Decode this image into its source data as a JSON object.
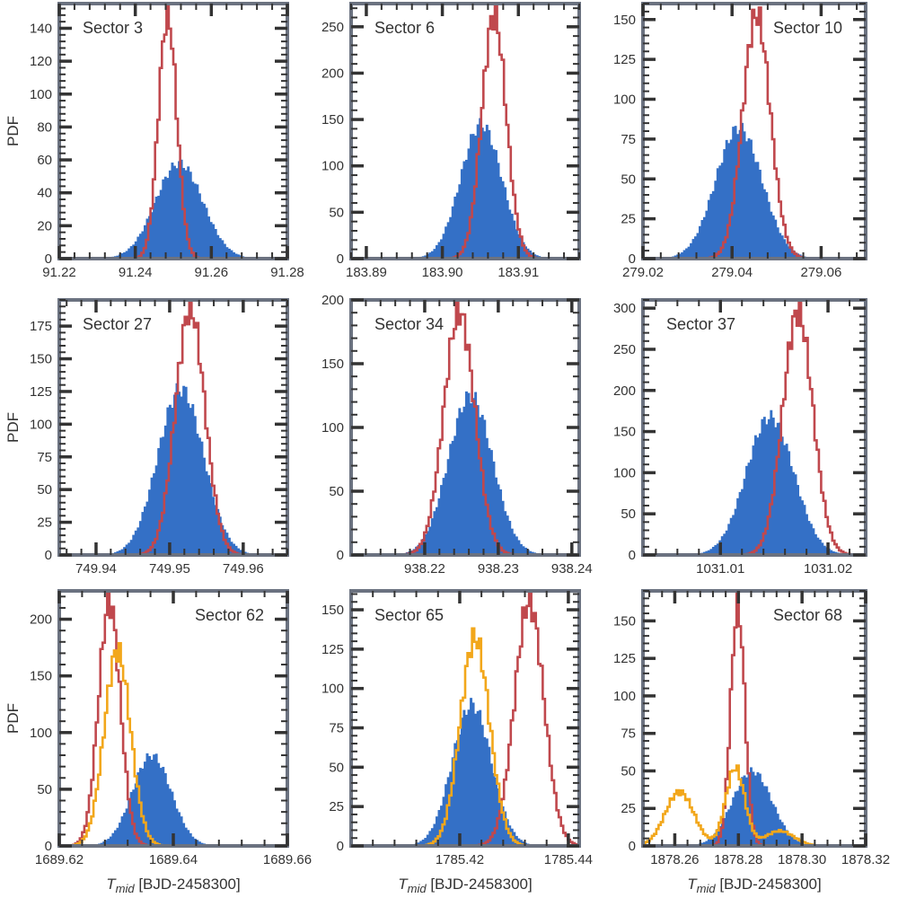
{
  "figure": {
    "xlabel_symbol": "T",
    "xlabel_subscript": "mid",
    "xlabel_unit": " [BJD-2458300]",
    "ylabel": "PDF"
  },
  "colors": {
    "filled": "#3470c6",
    "red": "#c0484d",
    "orange": "#f2a71b",
    "frame": "#6b7280",
    "tick": "#333333"
  },
  "chart_data": [
    {
      "type": "histogram",
      "title": "Sector 3",
      "label_pos": "top-left",
      "xlim": [
        91.22,
        91.28
      ],
      "ylim": [
        0,
        155
      ],
      "xticks": [
        91.22,
        91.24,
        91.26,
        91.28
      ],
      "xtick_labels": [
        "91.22",
        "91.24",
        "91.26",
        "91.28"
      ],
      "yticks": [
        0,
        20,
        40,
        60,
        80,
        100,
        120,
        140
      ],
      "ylabel": "PDF",
      "xlabel": "",
      "series": [
        {
          "name": "filled",
          "style": "filled",
          "center": 91.2515,
          "sigma": 0.0062,
          "peak": 58
        },
        {
          "name": "red",
          "style": "step",
          "center": 91.2485,
          "sigma": 0.0024,
          "peak": 148
        }
      ]
    },
    {
      "type": "histogram",
      "title": "Sector 6",
      "label_pos": "top-left",
      "xlim": [
        183.888,
        183.918
      ],
      "ylim": [
        0,
        275
      ],
      "xticks": [
        183.89,
        183.9,
        183.91
      ],
      "xtick_labels": [
        "183.89",
        "183.90",
        "183.91"
      ],
      "yticks": [
        0,
        50,
        100,
        150,
        200,
        250
      ],
      "ylabel": "",
      "xlabel": "",
      "series": [
        {
          "name": "filled",
          "style": "filled",
          "center": 183.9051,
          "sigma": 0.0027,
          "peak": 145
        },
        {
          "name": "red",
          "style": "step",
          "center": 183.9068,
          "sigma": 0.0016,
          "peak": 262
        }
      ]
    },
    {
      "type": "histogram",
      "title": "Sector 10",
      "label_pos": "top-right",
      "xlim": [
        279.02,
        279.07
      ],
      "ylim": [
        0,
        160
      ],
      "xticks": [
        279.02,
        279.04,
        279.06
      ],
      "xtick_labels": [
        "279.02",
        "279.04",
        "279.06"
      ],
      "yticks": [
        0,
        25,
        50,
        75,
        100,
        125,
        150
      ],
      "ylabel": "",
      "xlabel": "",
      "series": [
        {
          "name": "filled",
          "style": "filled",
          "center": 279.0415,
          "sigma": 0.0052,
          "peak": 82
        },
        {
          "name": "red",
          "style": "step",
          "center": 279.0455,
          "sigma": 0.0031,
          "peak": 153
        }
      ]
    },
    {
      "type": "histogram",
      "title": "Sector 27",
      "label_pos": "top-left",
      "xlim": [
        749.935,
        749.966
      ],
      "ylim": [
        0,
        195
      ],
      "xticks": [
        749.94,
        749.95,
        749.96
      ],
      "xtick_labels": [
        "749.94",
        "749.95",
        "749.96"
      ],
      "yticks": [
        0,
        25,
        50,
        75,
        100,
        125,
        150,
        175
      ],
      "ylabel": "PDF",
      "xlabel": "",
      "series": [
        {
          "name": "filled",
          "style": "filled",
          "center": 749.9515,
          "sigma": 0.0031,
          "peak": 127
        },
        {
          "name": "red",
          "style": "step",
          "center": 749.9528,
          "sigma": 0.002,
          "peak": 188
        }
      ]
    },
    {
      "type": "histogram",
      "title": "Sector 34",
      "label_pos": "top-left",
      "xlim": [
        938.21,
        938.241
      ],
      "ylim": [
        0,
        200
      ],
      "xticks": [
        938.22,
        938.23,
        938.24
      ],
      "xtick_labels": [
        "938.22",
        "938.23",
        "938.24"
      ],
      "yticks": [
        0,
        50,
        100,
        150,
        200
      ],
      "ylabel": "",
      "xlabel": "",
      "series": [
        {
          "name": "filled",
          "style": "filled",
          "center": 938.2262,
          "sigma": 0.003,
          "peak": 125
        },
        {
          "name": "red",
          "style": "step",
          "center": 938.2247,
          "sigma": 0.0021,
          "peak": 190
        }
      ]
    },
    {
      "type": "histogram",
      "title": "Sector 37",
      "label_pos": "top-left",
      "xlim": [
        1031.0028,
        1031.0235
      ],
      "ylim": [
        0,
        310
      ],
      "xticks": [
        1031.01,
        1031.02
      ],
      "xtick_labels": [
        "1031.01",
        "1031.02"
      ],
      "yticks": [
        0,
        50,
        100,
        150,
        200,
        250,
        300
      ],
      "ylabel": "",
      "xlabel": "",
      "series": [
        {
          "name": "filled",
          "style": "filled",
          "center": 1031.0146,
          "sigma": 0.0022,
          "peak": 168
        },
        {
          "name": "red",
          "style": "step",
          "center": 1031.0172,
          "sigma": 0.0014,
          "peak": 295
        }
      ]
    },
    {
      "type": "histogram",
      "title": "Sector 62",
      "label_pos": "top-right",
      "xlim": [
        1689.62,
        1689.66
      ],
      "ylim": [
        0,
        225
      ],
      "xticks": [
        1689.62,
        1689.64,
        1689.66
      ],
      "xtick_labels": [
        "1689.62",
        "1689.64",
        "1689.66"
      ],
      "yticks": [
        0,
        50,
        100,
        150,
        200
      ],
      "ylabel": "PDF",
      "xlabel": "T_mid [BJD-2458300]",
      "series": [
        {
          "name": "filled",
          "style": "filled",
          "center": 1689.6362,
          "sigma": 0.0034,
          "peak": 80
        },
        {
          "name": "red",
          "style": "step",
          "center": 1689.6288,
          "sigma": 0.0019,
          "peak": 215
        },
        {
          "name": "orange",
          "style": "step",
          "center": 1689.6302,
          "sigma": 0.0023,
          "peak": 172
        }
      ]
    },
    {
      "type": "histogram",
      "title": "Sector 65",
      "label_pos": "top-left",
      "xlim": [
        1785.4,
        1785.442
      ],
      "ylim": [
        0,
        162
      ],
      "xticks": [
        1785.42,
        1785.44
      ],
      "xtick_labels": [
        "1785.42",
        "1785.44"
      ],
      "yticks": [
        0,
        25,
        50,
        75,
        100,
        125,
        150
      ],
      "ylabel": "",
      "xlabel": "T_mid [BJD-2458300]",
      "series": [
        {
          "name": "filled",
          "style": "filled",
          "center": 1785.4222,
          "sigma": 0.0036,
          "peak": 90
        },
        {
          "name": "red",
          "style": "step",
          "center": 1785.4328,
          "sigma": 0.0027,
          "peak": 155
        },
        {
          "name": "orange",
          "style": "step",
          "center": 1785.4228,
          "sigma": 0.0027,
          "peak": 132
        }
      ]
    },
    {
      "type": "histogram",
      "title": "Sector 68",
      "label_pos": "top-right",
      "xlim": [
        1878.25,
        1878.32
      ],
      "ylim": [
        0,
        170
      ],
      "xticks": [
        1878.26,
        1878.28,
        1878.3,
        1878.32
      ],
      "xtick_labels": [
        "1878.26",
        "1878.28",
        "1878.30",
        "1878.32"
      ],
      "yticks": [
        0,
        25,
        50,
        75,
        100,
        125,
        150
      ],
      "ylabel": "",
      "xlabel": "T_mid [BJD-2458300]",
      "series": [
        {
          "name": "filled",
          "style": "filled",
          "center": 1878.2843,
          "sigma": 0.0062,
          "peak": 50
        },
        {
          "name": "red",
          "style": "step",
          "center": 1878.2798,
          "sigma": 0.0022,
          "peak": 160
        },
        {
          "name": "orange",
          "style": "step",
          "components": [
            {
              "center": 1878.2615,
              "sigma": 0.0045,
              "peak": 36
            },
            {
              "center": 1878.279,
              "sigma": 0.003,
              "peak": 52
            },
            {
              "center": 1878.293,
              "sigma": 0.0045,
              "peak": 10
            }
          ]
        }
      ]
    }
  ]
}
